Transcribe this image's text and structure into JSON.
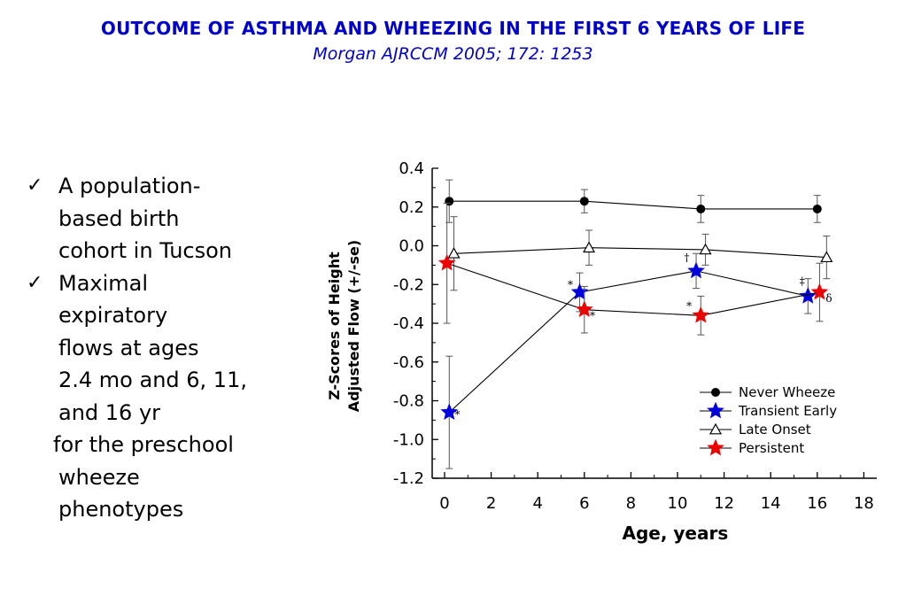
{
  "slide": {
    "title": "OUTCOME OF ASTHMA AND WHEEZING IN THE FIRST 6 YEARS OF LIFE",
    "subtitle": "Morgan  AJRCCM 2005; 172: 1253",
    "bullets": [
      {
        "lines": [
          "A population-",
          "based birth",
          "cohort in Tucson"
        ]
      },
      {
        "lines": [
          "Maximal",
          "expiratory",
          "flows at ages",
          "2.4 mo and 6, 11,",
          "and 16 yr"
        ]
      }
    ],
    "note": {
      "lines": [
        "for the preschool",
        "wheeze",
        "phenotypes"
      ]
    },
    "check_icon": "check-mark-icon"
  },
  "chart_data": {
    "type": "line",
    "xlabel": "Age, years",
    "ylabel": [
      "Z-Scores of Height",
      "Adjusted Flow (+/-se)"
    ],
    "xlim": [
      0,
      18
    ],
    "ylim": [
      -1.2,
      0.4
    ],
    "xticks": [
      "0",
      "2",
      "4",
      "6",
      "8",
      "10",
      "12",
      "14",
      "16",
      "18"
    ],
    "yticks": [
      "0.4",
      "0.2",
      "0.0",
      "-0.2",
      "-0.4",
      "-0.6",
      "-0.8",
      "-1.0",
      "-1.2"
    ],
    "legend_position": "bottom-right",
    "series": [
      {
        "name": "Never Wheeze",
        "marker": "filled-circle",
        "color": "#000000",
        "x": [
          0.2,
          6.0,
          11.0,
          16.0
        ],
        "y": [
          0.23,
          0.23,
          0.19,
          0.19
        ],
        "err": [
          0.11,
          0.06,
          0.07,
          0.07
        ]
      },
      {
        "name": "Transient Early",
        "marker": "star",
        "color": "#0000dd",
        "x": [
          0.2,
          5.8,
          10.8,
          15.6
        ],
        "y": [
          -0.86,
          -0.24,
          -0.13,
          -0.26
        ],
        "err": [
          0.29,
          0.1,
          0.09,
          0.09
        ]
      },
      {
        "name": "Late Onset",
        "marker": "open-triangle",
        "color": "#000000",
        "x": [
          0.4,
          6.2,
          11.2,
          16.4
        ],
        "y": [
          -0.04,
          -0.01,
          -0.02,
          -0.06
        ],
        "err": [
          0.19,
          0.09,
          0.08,
          0.11
        ]
      },
      {
        "name": "Persistent",
        "marker": "star",
        "color": "#ee0000",
        "x": [
          0.1,
          6.0,
          11.0,
          16.1
        ],
        "y": [
          -0.09,
          -0.33,
          -0.36,
          -0.24
        ],
        "err": [
          0.31,
          0.12,
          0.1,
          0.15
        ]
      }
    ],
    "annotations": [
      {
        "text": "*",
        "x": 0.55,
        "y": -0.89
      },
      {
        "text": "*",
        "x": 5.4,
        "y": -0.22
      },
      {
        "text": "*",
        "x": 6.35,
        "y": -0.38
      },
      {
        "text": "*",
        "x": 10.5,
        "y": -0.33
      },
      {
        "text": "†",
        "x": 10.4,
        "y": -0.08
      },
      {
        "text": "‡",
        "x": 15.35,
        "y": -0.2
      },
      {
        "text": "δ",
        "x": 16.5,
        "y": -0.29
      }
    ]
  }
}
